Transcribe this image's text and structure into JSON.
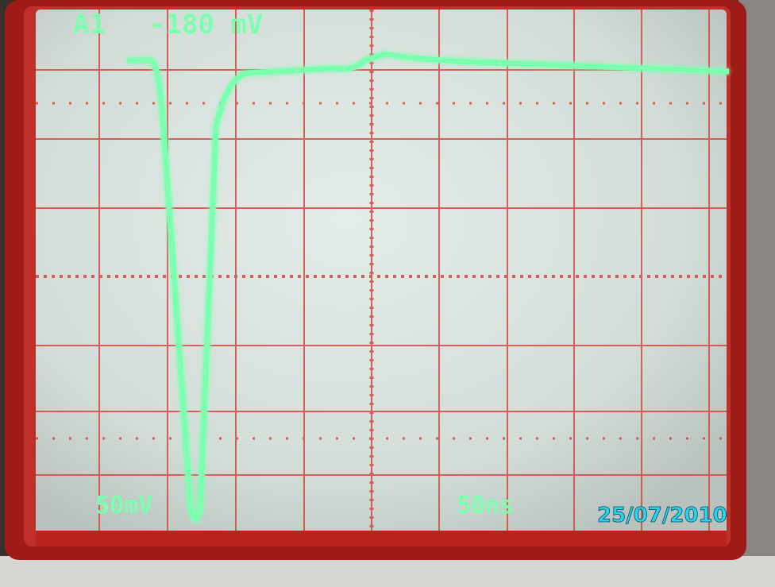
{
  "readout": {
    "channel": "A1",
    "trigger_level": "-180 mV",
    "volts_per_div": "50mV",
    "time_per_div": "50ns"
  },
  "timestamp": "25/07/2010"
}
